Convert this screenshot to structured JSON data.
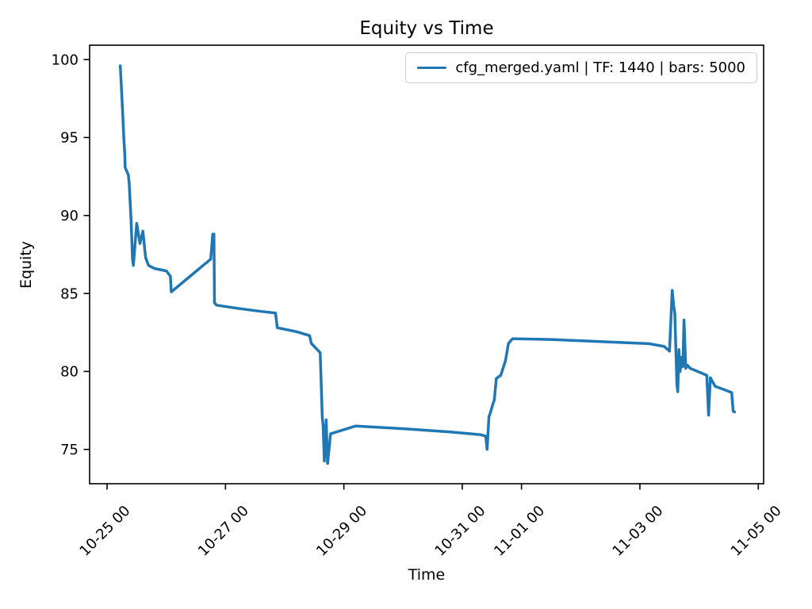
{
  "chart_data": {
    "type": "line",
    "title": "Equity vs Time",
    "xlabel": "Time",
    "ylabel": "Equity",
    "legend": {
      "label": "cfg_merged.yaml | TF: 1440 | bars: 5000",
      "position": "upper right"
    },
    "line_color": "#1f77b4",
    "grid": false,
    "x_unit": "days since 10-25 00:00",
    "xlim": [
      -0.295,
      11.09
    ],
    "ylim": [
      72.8,
      100.92
    ],
    "x_ticks": [
      {
        "t": 0,
        "label": "10-25 00"
      },
      {
        "t": 2,
        "label": "10-27 00"
      },
      {
        "t": 4,
        "label": "10-29 00"
      },
      {
        "t": 6,
        "label": "10-31 00"
      },
      {
        "t": 7,
        "label": "11-01 00"
      },
      {
        "t": 9,
        "label": "11-03 00"
      },
      {
        "t": 11,
        "label": "11-05 00"
      }
    ],
    "y_ticks": [
      75,
      80,
      85,
      90,
      95,
      100
    ],
    "points": [
      [
        0.224,
        99.6
      ],
      [
        0.26,
        96.9
      ],
      [
        0.285,
        94.8
      ],
      [
        0.3,
        93.9
      ],
      [
        0.305,
        93.1
      ],
      [
        0.315,
        93.0
      ],
      [
        0.36,
        92.6
      ],
      [
        0.375,
        92.0
      ],
      [
        0.405,
        89.7
      ],
      [
        0.43,
        87.2
      ],
      [
        0.445,
        86.8
      ],
      [
        0.5,
        89.5
      ],
      [
        0.555,
        88.2
      ],
      [
        0.605,
        89.0
      ],
      [
        0.65,
        87.3
      ],
      [
        0.7,
        86.8
      ],
      [
        0.8,
        86.6
      ],
      [
        1.0,
        86.45
      ],
      [
        1.07,
        86.1
      ],
      [
        1.085,
        85.1
      ],
      [
        1.75,
        87.2
      ],
      [
        1.785,
        88.8
      ],
      [
        1.805,
        88.8
      ],
      [
        1.815,
        84.4
      ],
      [
        1.85,
        84.25
      ],
      [
        2.2,
        84.05
      ],
      [
        2.6,
        83.85
      ],
      [
        2.845,
        83.75
      ],
      [
        2.875,
        82.8
      ],
      [
        3.2,
        82.55
      ],
      [
        3.42,
        82.3
      ],
      [
        3.45,
        81.8
      ],
      [
        3.6,
        81.2
      ],
      [
        3.635,
        77.1
      ],
      [
        3.65,
        76.5
      ],
      [
        3.67,
        74.25
      ],
      [
        3.7,
        76.9
      ],
      [
        3.725,
        74.1
      ],
      [
        3.775,
        76.0
      ],
      [
        4.2,
        76.5
      ],
      [
        5.0,
        76.33
      ],
      [
        5.8,
        76.12
      ],
      [
        6.3,
        75.95
      ],
      [
        6.395,
        75.85
      ],
      [
        6.42,
        75.0
      ],
      [
        6.45,
        77.1
      ],
      [
        6.47,
        77.3
      ],
      [
        6.52,
        77.95
      ],
      [
        6.54,
        78.15
      ],
      [
        6.575,
        79.55
      ],
      [
        6.65,
        79.75
      ],
      [
        6.73,
        80.7
      ],
      [
        6.78,
        81.8
      ],
      [
        6.85,
        82.1
      ],
      [
        7.5,
        82.05
      ],
      [
        8.4,
        81.9
      ],
      [
        9.15,
        81.78
      ],
      [
        9.41,
        81.6
      ],
      [
        9.5,
        81.3
      ],
      [
        9.545,
        85.2
      ],
      [
        9.57,
        84.25
      ],
      [
        9.59,
        83.7
      ],
      [
        9.625,
        79.2
      ],
      [
        9.64,
        78.7
      ],
      [
        9.66,
        81.4
      ],
      [
        9.68,
        80.0
      ],
      [
        9.705,
        80.9
      ],
      [
        9.725,
        80.3
      ],
      [
        9.745,
        83.3
      ],
      [
        9.775,
        80.2
      ],
      [
        9.8,
        80.4
      ],
      [
        9.85,
        80.2
      ],
      [
        10.13,
        79.75
      ],
      [
        10.16,
        77.2
      ],
      [
        10.19,
        79.6
      ],
      [
        10.27,
        79.05
      ],
      [
        10.55,
        78.65
      ],
      [
        10.575,
        77.45
      ],
      [
        10.6,
        77.4
      ]
    ]
  }
}
